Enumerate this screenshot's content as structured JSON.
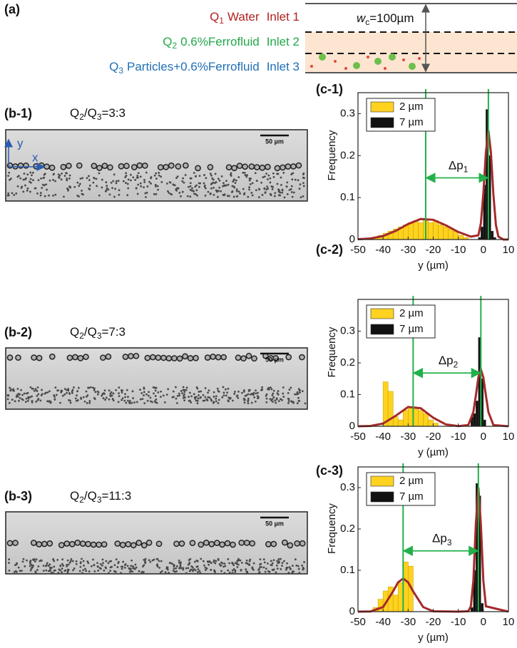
{
  "panel_a": {
    "label": "(a)",
    "inlets": [
      {
        "q": "Q",
        "sub": "1",
        "fluid": "Water",
        "inlet": "Inlet 1",
        "color": "#b22222"
      },
      {
        "q": "Q",
        "sub": "2",
        "fluid": "0.6%Ferrofluid",
        "inlet": "Inlet 2",
        "color": "#22a84a"
      },
      {
        "q": "Q",
        "sub": "3",
        "fluid": "Particles+0.6%Ferrofluid",
        "inlet": "Inlet 3",
        "color": "#1f6fb4"
      }
    ],
    "width_label": {
      "symbol": "w",
      "sub": "c",
      "text": "=100µm"
    }
  },
  "panel_b": {
    "axes": {
      "y": "y",
      "x": "x"
    },
    "panels": [
      {
        "label": "(b-1)",
        "a": "Q",
        "a_sub": "2",
        "b": "/Q",
        "b_sub": "3",
        "value": "=3:3",
        "scale": "50 µm"
      },
      {
        "label": "(b-2)",
        "a": "Q",
        "a_sub": "2",
        "b": "/Q",
        "b_sub": "3",
        "value": "=7:3",
        "scale": "50 µm"
      },
      {
        "label": "(b-3)",
        "a": "Q",
        "a_sub": "2",
        "b": "/Q",
        "b_sub": "3",
        "value": "=11:3",
        "scale": "50 µm"
      }
    ]
  },
  "chart_data": [
    {
      "type": "histogram",
      "panel": "(c-1)",
      "xlabel": "y (µm)",
      "ylabel": "Frequency",
      "xlim": [
        -50,
        10
      ],
      "ylim": [
        0,
        0.35
      ],
      "xticks": [
        -50,
        -40,
        -30,
        -20,
        -10,
        0,
        10
      ],
      "yticks": [
        0,
        0.1,
        0.2,
        0.3
      ],
      "series": [
        {
          "name": "2 µm",
          "color": "#ffd21f",
          "bins": [
            -44,
            -42,
            -40,
            -38,
            -36,
            -34,
            -32,
            -30,
            -28,
            -26,
            -24,
            -22,
            -20,
            -18,
            -16,
            -14,
            -12,
            -10,
            -8,
            -6
          ],
          "values": [
            0.005,
            0.01,
            0.015,
            0.02,
            0.025,
            0.03,
            0.035,
            0.04,
            0.045,
            0.04,
            0.045,
            0.04,
            0.045,
            0.035,
            0.03,
            0.025,
            0.02,
            0.01,
            0.005
          ]
        },
        {
          "name": "7 µm",
          "color": "#111111",
          "bins": [
            -2,
            -1,
            0,
            1,
            2,
            3,
            4,
            5
          ],
          "values": [
            0.005,
            0.03,
            0.13,
            0.31,
            0.2,
            0.02,
            0.005
          ]
        }
      ],
      "fit": {
        "color": "#a52a2a",
        "x": [
          -50,
          -45,
          -40,
          -35,
          -30,
          -25,
          -20,
          -15,
          -10,
          -5,
          -2,
          -1,
          0,
          1,
          2,
          3,
          4,
          5,
          6,
          8,
          10
        ],
        "values": [
          0.0006,
          0.0025,
          0.0084,
          0.0205,
          0.037,
          0.049,
          0.047,
          0.034,
          0.018,
          0.007,
          0.01,
          0.038,
          0.109,
          0.208,
          0.26,
          0.208,
          0.107,
          0.035,
          0.007,
          0,
          0
        ]
      },
      "peaks": [
        -23,
        2
      ],
      "peak_color": "#22b04a",
      "annotation": {
        "text": "Δp",
        "sub": "1"
      }
    },
    {
      "type": "histogram",
      "panel": "(c-2)",
      "xlabel": "y (µm)",
      "ylabel": "Frequency",
      "xlim": [
        -50,
        10
      ],
      "ylim": [
        0,
        0.4
      ],
      "xticks": [
        -50,
        -40,
        -30,
        -20,
        -10,
        0,
        10
      ],
      "yticks": [
        0,
        0.1,
        0.2,
        0.3
      ],
      "series": [
        {
          "name": "2 µm",
          "color": "#ffd21f",
          "bins": [
            -40,
            -38,
            -36,
            -34,
            -32,
            -30,
            -28,
            -26,
            -24,
            -22,
            -20,
            -18
          ],
          "values": [
            0.14,
            0.11,
            0.03,
            0.02,
            0.05,
            0.06,
            0.06,
            0.05,
            0.04,
            0.02,
            0.01
          ]
        },
        {
          "name": "7 µm",
          "color": "#111111",
          "bins": [
            -5,
            -4,
            -3,
            -2,
            -1,
            0,
            1
          ],
          "values": [
            0.03,
            0.04,
            0.08,
            0.28,
            0.15,
            0.02
          ]
        }
      ],
      "fit": {
        "color": "#a52a2a",
        "x": [
          -50,
          -45,
          -40,
          -35,
          -30,
          -25,
          -20,
          -15,
          -10,
          -6,
          -4,
          -3,
          -2,
          -1,
          0,
          1,
          2,
          4,
          10
        ],
        "values": [
          0,
          0.0012,
          0.0088,
          0.033,
          0.061,
          0.057,
          0.027,
          0.006,
          0.0007,
          0.004,
          0.045,
          0.097,
          0.154,
          0.18,
          0.154,
          0.097,
          0.045,
          0.004,
          0
        ]
      },
      "peaks": [
        -28,
        -1
      ],
      "peak_color": "#22b04a",
      "annotation": {
        "text": "Δp",
        "sub": "2"
      }
    },
    {
      "type": "histogram",
      "panel": "(c-3)",
      "xlabel": "y (µm)",
      "ylabel": "Frequency",
      "xlim": [
        -50,
        10
      ],
      "ylim": [
        0,
        0.35
      ],
      "xticks": [
        -50,
        -40,
        -30,
        -20,
        -10,
        0,
        10
      ],
      "yticks": [
        0,
        0.1,
        0.2,
        0.3
      ],
      "series": [
        {
          "name": "2 µm",
          "color": "#ffd21f",
          "bins": [
            -44,
            -42,
            -40,
            -38,
            -36,
            -34,
            -32,
            -30,
            -28
          ],
          "values": [
            0.01,
            0.03,
            0.05,
            0.06,
            0.04,
            0.07,
            0.12,
            0.11
          ]
        },
        {
          "name": "7 µm",
          "color": "#111111",
          "bins": [
            -5,
            -4,
            -3,
            -2,
            -1,
            0
          ],
          "values": [
            0.01,
            0.1,
            0.31,
            0.28,
            0.02
          ]
        }
      ],
      "fit": {
        "color": "#a52a2a",
        "x": [
          -50,
          -45,
          -40,
          -36,
          -34,
          -32,
          -30,
          -28,
          -24,
          -20,
          -10,
          -6,
          -5,
          -4,
          -3,
          -2,
          -1,
          0,
          1,
          10
        ],
        "values": [
          0,
          0.0005,
          0.011,
          0.049,
          0.071,
          0.08,
          0.071,
          0.049,
          0.011,
          0.0009,
          0,
          0.001,
          0.013,
          0.075,
          0.212,
          0.3,
          0.212,
          0.075,
          0.013,
          0
        ]
      },
      "peaks": [
        -32,
        -2
      ],
      "peak_color": "#22b04a",
      "annotation": {
        "text": "Δp",
        "sub": "3"
      }
    }
  ]
}
